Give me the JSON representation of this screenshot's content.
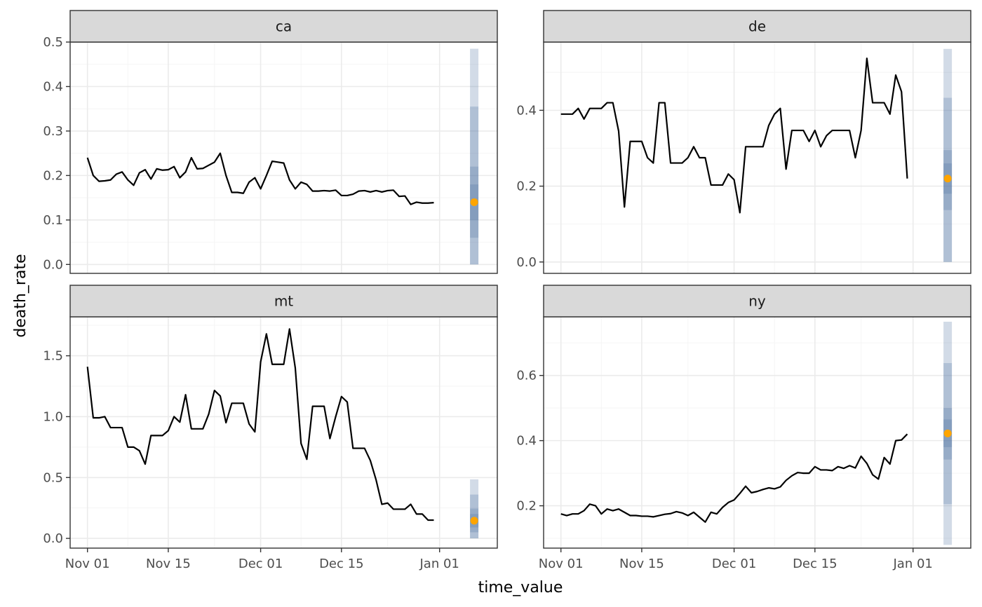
{
  "chart_data": {
    "type": "line",
    "xlabel": "time_value",
    "ylabel": "death_rate",
    "grid": true,
    "x_ticks": [
      {
        "label": "Nov 01",
        "day": 0
      },
      {
        "label": "Nov 15",
        "day": 14
      },
      {
        "label": "Dec 01",
        "day": 30
      },
      {
        "label": "Dec 15",
        "day": 44
      },
      {
        "label": "Jan 01",
        "day": 61
      }
    ],
    "x_minor_days": [
      7,
      22,
      37,
      52
    ],
    "xlim_days": [
      -3,
      71
    ],
    "forecast_day": 67,
    "colors": {
      "line": "#000000",
      "band": "#4a6fa0",
      "point": "#ffa500",
      "strip_fill": "#d9d9d9",
      "border": "#333333",
      "grid_major": "#ebebeb",
      "grid_minor": "#f5f5f5"
    },
    "panels": [
      {
        "name": "ca",
        "ylim": [
          -0.02,
          0.5
        ],
        "y_ticks": [
          {
            "v": 0.0,
            "label": "0.0"
          },
          {
            "v": 0.1,
            "label": "0.1"
          },
          {
            "v": 0.2,
            "label": "0.2"
          },
          {
            "v": 0.3,
            "label": "0.3"
          },
          {
            "v": 0.4,
            "label": "0.4"
          },
          {
            "v": 0.5,
            "label": "0.5"
          }
        ],
        "values": [
          0.24,
          0.2,
          0.187,
          0.188,
          0.19,
          0.203,
          0.208,
          0.19,
          0.178,
          0.206,
          0.213,
          0.192,
          0.215,
          0.212,
          0.213,
          0.22,
          0.195,
          0.208,
          0.24,
          0.215,
          0.216,
          0.223,
          0.23,
          0.25,
          0.2,
          0.162,
          0.162,
          0.16,
          0.185,
          0.195,
          0.17,
          0.2,
          0.232,
          0.23,
          0.228,
          0.19,
          0.17,
          0.185,
          0.18,
          0.165,
          0.165,
          0.166,
          0.165,
          0.167,
          0.155,
          0.155,
          0.158,
          0.165,
          0.166,
          0.163,
          0.166,
          0.163,
          0.166,
          0.167,
          0.153,
          0.154,
          0.135,
          0.14,
          0.138,
          0.138,
          0.139
        ],
        "point": 0.14,
        "bands": [
          [
            0.0,
            0.485
          ],
          [
            0.0,
            0.355
          ],
          [
            0.06,
            0.22
          ],
          [
            0.1,
            0.18
          ]
        ]
      },
      {
        "name": "de",
        "ylim": [
          -0.03,
          0.58
        ],
        "y_ticks": [
          {
            "v": 0.0,
            "label": "0.0"
          },
          {
            "v": 0.2,
            "label": "0.2"
          },
          {
            "v": 0.4,
            "label": "0.4"
          }
        ],
        "values": [
          0.39,
          0.39,
          0.39,
          0.405,
          0.377,
          0.405,
          0.405,
          0.405,
          0.42,
          0.42,
          0.345,
          0.145,
          0.318,
          0.318,
          0.318,
          0.275,
          0.261,
          0.42,
          0.42,
          0.261,
          0.261,
          0.261,
          0.275,
          0.304,
          0.275,
          0.275,
          0.203,
          0.203,
          0.203,
          0.232,
          0.217,
          0.13,
          0.304,
          0.304,
          0.304,
          0.304,
          0.36,
          0.39,
          0.405,
          0.245,
          0.347,
          0.347,
          0.347,
          0.318,
          0.347,
          0.304,
          0.333,
          0.347,
          0.347,
          0.347,
          0.347,
          0.275,
          0.347,
          0.537,
          0.42,
          0.42,
          0.42,
          0.39,
          0.493,
          0.449,
          0.22
        ],
        "point": 0.22,
        "bands": [
          [
            0.0,
            0.562
          ],
          [
            0.0,
            0.433
          ],
          [
            0.137,
            0.295
          ],
          [
            0.18,
            0.26
          ]
        ]
      },
      {
        "name": "mt",
        "ylim": [
          -0.08,
          1.82
        ],
        "y_ticks": [
          {
            "v": 0.0,
            "label": "0.0"
          },
          {
            "v": 0.5,
            "label": "0.5"
          },
          {
            "v": 1.0,
            "label": "1.0"
          },
          {
            "v": 1.5,
            "label": "1.5"
          }
        ],
        "values": [
          1.41,
          0.99,
          0.99,
          1.0,
          0.91,
          0.91,
          0.91,
          0.75,
          0.75,
          0.72,
          0.61,
          0.845,
          0.845,
          0.845,
          0.885,
          1.0,
          0.955,
          1.18,
          0.9,
          0.9,
          0.9,
          1.02,
          1.215,
          1.17,
          0.95,
          1.11,
          1.11,
          1.11,
          0.94,
          0.875,
          1.45,
          1.68,
          1.43,
          1.43,
          1.43,
          1.72,
          1.4,
          0.78,
          0.65,
          1.085,
          1.085,
          1.085,
          0.82,
          1.0,
          1.165,
          1.12,
          0.74,
          0.74,
          0.74,
          0.64,
          0.48,
          0.28,
          0.29,
          0.24,
          0.24,
          0.24,
          0.28,
          0.2,
          0.2,
          0.15,
          0.15
        ],
        "point": 0.145,
        "bands": [
          [
            0.0,
            0.485
          ],
          [
            0.0,
            0.36
          ],
          [
            0.05,
            0.245
          ],
          [
            0.09,
            0.2
          ]
        ]
      },
      {
        "name": "ny",
        "ylim": [
          0.07,
          0.78
        ],
        "y_ticks": [
          {
            "v": 0.2,
            "label": "0.2"
          },
          {
            "v": 0.4,
            "label": "0.4"
          },
          {
            "v": 0.6,
            "label": "0.6"
          }
        ],
        "values": [
          0.175,
          0.17,
          0.175,
          0.175,
          0.185,
          0.205,
          0.2,
          0.175,
          0.19,
          0.185,
          0.19,
          0.18,
          0.17,
          0.17,
          0.168,
          0.168,
          0.166,
          0.17,
          0.174,
          0.176,
          0.182,
          0.178,
          0.17,
          0.18,
          0.165,
          0.15,
          0.18,
          0.175,
          0.195,
          0.21,
          0.218,
          0.238,
          0.26,
          0.24,
          0.244,
          0.25,
          0.255,
          0.252,
          0.258,
          0.278,
          0.292,
          0.302,
          0.3,
          0.3,
          0.32,
          0.31,
          0.31,
          0.308,
          0.32,
          0.315,
          0.323,
          0.316,
          0.352,
          0.33,
          0.295,
          0.282,
          0.348,
          0.328,
          0.4,
          0.402,
          0.42
        ],
        "point": 0.422,
        "bands": [
          [
            0.08,
            0.765
          ],
          [
            0.205,
            0.638
          ],
          [
            0.342,
            0.5
          ],
          [
            0.38,
            0.465
          ]
        ]
      }
    ]
  }
}
